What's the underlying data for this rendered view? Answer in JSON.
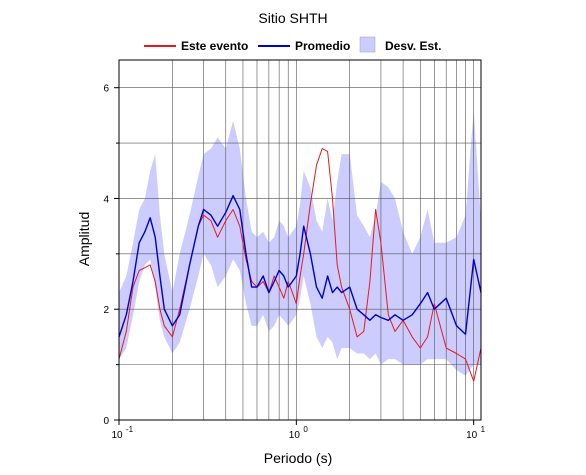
{
  "chart_data": {
    "type": "line",
    "title": "Sitio SHTH",
    "xlabel": "Periodo (s)",
    "ylabel": "Amplitud",
    "x_scale": "log",
    "xlim": [
      0.1,
      11
    ],
    "ylim": [
      0,
      6.5
    ],
    "x_ticks": [
      0.1,
      1,
      10
    ],
    "y_ticks": [
      0,
      2,
      4,
      6
    ],
    "grid": true,
    "legend_position": "top",
    "legend": [
      "Este evento",
      "Promedio",
      "Desv. Est."
    ],
    "x": [
      0.1,
      0.11,
      0.12,
      0.13,
      0.14,
      0.15,
      0.16,
      0.17,
      0.18,
      0.2,
      0.22,
      0.25,
      0.28,
      0.3,
      0.33,
      0.36,
      0.4,
      0.44,
      0.48,
      0.52,
      0.56,
      0.6,
      0.65,
      0.7,
      0.75,
      0.8,
      0.85,
      0.9,
      0.95,
      1.0,
      1.05,
      1.1,
      1.2,
      1.3,
      1.4,
      1.5,
      1.6,
      1.7,
      1.8,
      2.0,
      2.2,
      2.4,
      2.6,
      2.8,
      3.0,
      3.3,
      3.6,
      4.0,
      4.5,
      5.0,
      5.5,
      6.0,
      7.0,
      8.0,
      9.0,
      10.0,
      11.0
    ],
    "series": [
      {
        "name": "Este evento",
        "color": "#e41a1c",
        "values": [
          1.1,
          1.6,
          2.4,
          2.7,
          2.75,
          2.8,
          2.5,
          2.0,
          1.7,
          1.5,
          2.0,
          2.8,
          3.5,
          3.7,
          3.6,
          3.3,
          3.6,
          3.8,
          3.5,
          2.9,
          2.5,
          2.4,
          2.5,
          2.3,
          2.6,
          2.4,
          2.2,
          2.5,
          2.3,
          2.1,
          2.6,
          3.0,
          3.9,
          4.6,
          4.9,
          4.85,
          4.0,
          2.8,
          2.4,
          2.0,
          1.5,
          1.6,
          2.5,
          3.8,
          3.2,
          1.9,
          1.6,
          1.8,
          1.5,
          1.3,
          1.5,
          2.1,
          1.3,
          1.2,
          1.1,
          0.7,
          1.3
        ]
      },
      {
        "name": "Promedio",
        "color": "#0000cc",
        "values": [
          1.5,
          1.9,
          2.5,
          3.2,
          3.4,
          3.65,
          3.3,
          2.6,
          2.0,
          1.7,
          1.9,
          2.8,
          3.5,
          3.8,
          3.7,
          3.5,
          3.75,
          4.05,
          3.8,
          3.0,
          2.4,
          2.4,
          2.6,
          2.3,
          2.5,
          2.7,
          2.6,
          2.4,
          2.5,
          2.6,
          3.0,
          3.5,
          3.0,
          2.4,
          2.2,
          2.6,
          2.3,
          2.4,
          2.3,
          2.4,
          2.0,
          1.9,
          1.8,
          1.9,
          1.85,
          1.8,
          1.9,
          1.8,
          1.9,
          2.1,
          2.3,
          2.0,
          2.2,
          1.7,
          1.55,
          2.9,
          2.3
        ]
      },
      {
        "name": "Desv. Est.",
        "type": "band",
        "color": "#ccccff",
        "upper": [
          2.3,
          2.6,
          3.2,
          3.8,
          4.0,
          4.5,
          4.8,
          3.7,
          3.0,
          2.3,
          3.0,
          3.7,
          4.4,
          4.8,
          4.9,
          5.1,
          4.9,
          5.4,
          4.9,
          4.0,
          3.4,
          3.3,
          3.4,
          3.2,
          3.3,
          3.6,
          3.5,
          3.3,
          3.4,
          3.5,
          3.9,
          4.5,
          4.2,
          3.6,
          3.4,
          4.0,
          3.6,
          4.3,
          4.8,
          4.8,
          3.7,
          3.5,
          3.3,
          3.7,
          4.3,
          4.2,
          4.0,
          3.4,
          3.0,
          3.3,
          3.8,
          3.2,
          3.2,
          3.3,
          3.7,
          5.6,
          3.6
        ],
        "lower": [
          1.1,
          1.3,
          1.9,
          2.5,
          2.8,
          2.9,
          2.4,
          1.8,
          1.5,
          1.2,
          1.4,
          2.0,
          2.6,
          3.0,
          2.8,
          2.4,
          2.6,
          2.9,
          2.7,
          2.1,
          1.7,
          1.7,
          1.9,
          1.6,
          1.7,
          1.9,
          1.8,
          1.7,
          1.8,
          1.9,
          2.2,
          2.6,
          2.1,
          1.5,
          1.3,
          1.5,
          1.4,
          1.1,
          1.3,
          1.3,
          1.2,
          1.2,
          1.1,
          1.2,
          1.0,
          1.1,
          1.1,
          1.0,
          1.0,
          1.0,
          1.1,
          1.1,
          1.1,
          0.9,
          0.8,
          1.0,
          1.0
        ]
      }
    ]
  }
}
